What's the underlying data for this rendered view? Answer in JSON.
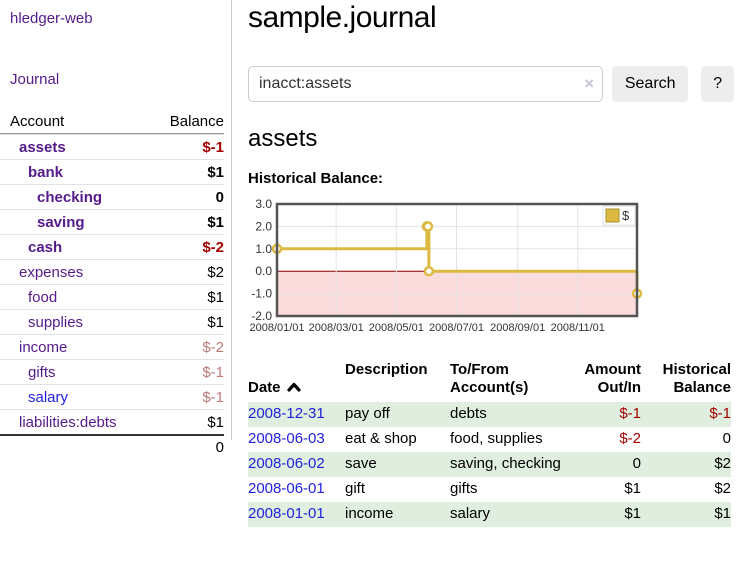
{
  "app": {
    "brand": "hledger-web"
  },
  "sidebar": {
    "nav": {
      "journal_label": "Journal"
    },
    "accounts_table": {
      "headers": {
        "account": "Account",
        "balance": "Balance"
      },
      "rows": [
        {
          "name": "assets",
          "balance": "$-1",
          "indent": 0,
          "bold": true
        },
        {
          "name": "bank",
          "balance": "$1",
          "indent": 1,
          "bold": true
        },
        {
          "name": "checking",
          "balance": "0",
          "indent": 2,
          "bold": true
        },
        {
          "name": "saving",
          "balance": "$1",
          "indent": 2,
          "bold": true
        },
        {
          "name": "cash",
          "balance": "$-2",
          "indent": 1,
          "bold": true
        },
        {
          "name": "expenses",
          "balance": "$2",
          "indent": 0,
          "bold": false
        },
        {
          "name": "food",
          "balance": "$1",
          "indent": 1,
          "bold": false
        },
        {
          "name": "supplies",
          "balance": "$1",
          "indent": 1,
          "bold": false
        },
        {
          "name": "income",
          "balance": "$-2",
          "indent": 0,
          "bold": false
        },
        {
          "name": "gifts",
          "balance": "$-1",
          "indent": 1,
          "bold": false
        },
        {
          "name": "salary",
          "balance": "$-1",
          "indent": 1,
          "bold": false,
          "unvisited": true
        },
        {
          "name": "liabilities:debts",
          "balance": "$1",
          "indent": 0,
          "bold": false
        }
      ],
      "total": "0"
    }
  },
  "header": {
    "title": "sample.journal"
  },
  "search": {
    "query": "inacct:assets",
    "clear_icon": "×",
    "search_label": "Search",
    "help_label": "?"
  },
  "account_page": {
    "heading": "assets",
    "chart_title": "Historical Balance:"
  },
  "chart_data": {
    "type": "line",
    "title": "Historical Balance",
    "step": "after",
    "series": [
      {
        "name": "$",
        "points": [
          [
            "2008-01-01",
            1
          ],
          [
            "2008-06-01",
            2
          ],
          [
            "2008-06-02",
            2
          ],
          [
            "2008-06-03",
            0
          ],
          [
            "2008-12-31",
            -1
          ]
        ]
      }
    ],
    "x_range": [
      "2008-01-01",
      "2008-12-31"
    ],
    "ylim": [
      -2,
      3
    ],
    "y_ticks": [
      3,
      2,
      1,
      0,
      -1,
      -2
    ],
    "y_tick_labels": [
      "3.0",
      "2.0",
      "1.0",
      "0.0",
      "-1.0",
      "-2.0"
    ],
    "x_tick_dates": [
      "2008-01-01",
      "2008-03-01",
      "2008-05-01",
      "2008-07-01",
      "2008-09-01",
      "2008-11-01"
    ],
    "x_tick_labels": [
      "2008/01/01",
      "2008/03/01",
      "2008/05/01",
      "2008/07/01",
      "2008/09/01",
      "2008/11/01"
    ],
    "legend": {
      "label": "$"
    },
    "grid": true,
    "legend_position": "top-right",
    "colors": {
      "line": "#dcb940",
      "marker_fill": "#ffffff",
      "negative_fill": "#fbdcdc",
      "zero_line": "#8b0000",
      "gridline": "#e3e3e3",
      "plot_border": "#545454",
      "tick_text": "#333333"
    }
  },
  "transactions": {
    "columns": [
      {
        "label": "Date"
      },
      {
        "label": "Description"
      },
      {
        "label": "To/From\nAccount(s)"
      },
      {
        "label": "Amount\nOut/In"
      },
      {
        "label": "Historical\nBalance"
      }
    ],
    "rows": [
      {
        "date": "2008-12-31",
        "description": "pay off",
        "accounts": "debts",
        "amount": "$-1",
        "balance": "$-1"
      },
      {
        "date": "2008-06-03",
        "description": "eat & shop",
        "accounts": "food, supplies",
        "amount": "$-2",
        "balance": "0"
      },
      {
        "date": "2008-06-02",
        "description": "save",
        "accounts": "saving, checking",
        "amount": "0",
        "balance": "$2"
      },
      {
        "date": "2008-06-01",
        "description": "gift",
        "accounts": "gifts",
        "amount": "$1",
        "balance": "$2"
      },
      {
        "date": "2008-01-01",
        "description": "income",
        "accounts": "salary",
        "amount": "$1",
        "balance": "$1"
      }
    ]
  },
  "colors": {
    "link_purple": "#551a8b",
    "link_blue": "#2222dd",
    "negative_strong": "#a40000",
    "negative_soft": "#bd7878",
    "row_stripe_green": "#dfeede"
  }
}
